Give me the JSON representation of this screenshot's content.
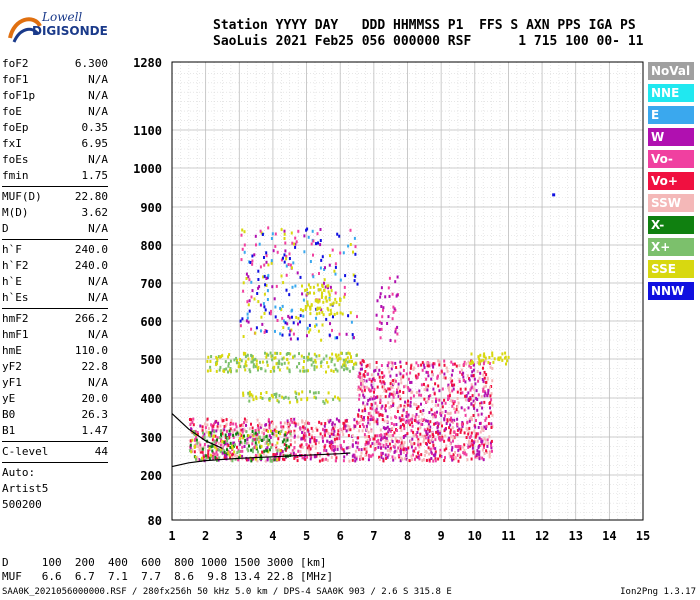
{
  "logo": {
    "line1": "Lowell",
    "line2": "DIGISONDE"
  },
  "header": {
    "line1": "Station YYYY DAY   DDD HHMMSS P1  FFS S AXN PPS IGA PS",
    "line2": "SaoLuis 2021 Feb25 056 000000 RSF      1 715 100 00- 11"
  },
  "params": {
    "group1": [
      {
        "k": "foF2",
        "v": "6.300"
      },
      {
        "k": "foF1",
        "v": "N/A"
      },
      {
        "k": "foF1p",
        "v": "N/A"
      },
      {
        "k": "foE",
        "v": "N/A"
      },
      {
        "k": "foEp",
        "v": "0.35"
      },
      {
        "k": "fxI",
        "v": "6.95"
      },
      {
        "k": "foEs",
        "v": "N/A"
      },
      {
        "k": "fmin",
        "v": "1.75"
      }
    ],
    "group2": [
      {
        "k": "MUF(D)",
        "v": "22.80"
      },
      {
        "k": "M(D)",
        "v": "3.62"
      },
      {
        "k": "D",
        "v": "N/A"
      }
    ],
    "group3": [
      {
        "k": "h`F",
        "v": "240.0"
      },
      {
        "k": "h`F2",
        "v": "240.0"
      },
      {
        "k": "h`E",
        "v": "N/A"
      },
      {
        "k": "h`Es",
        "v": "N/A"
      }
    ],
    "group4": [
      {
        "k": "hmF2",
        "v": "266.2"
      },
      {
        "k": "hmF1",
        "v": "N/A"
      },
      {
        "k": "hmE",
        "v": "110.0"
      },
      {
        "k": "yF2",
        "v": "22.8"
      },
      {
        "k": "yF1",
        "v": "N/A"
      },
      {
        "k": "yE",
        "v": "20.0"
      },
      {
        "k": "B0",
        "v": "26.3"
      },
      {
        "k": "B1",
        "v": "1.47"
      }
    ],
    "clevel": {
      "k": "C-level",
      "v": "44"
    },
    "auto": [
      "Auto:",
      "Artist5",
      "500200"
    ]
  },
  "legend": [
    {
      "label": "NoVal",
      "color": "#a0a0a0"
    },
    {
      "label": "NNE",
      "color": "#20e8f0"
    },
    {
      "label": "E",
      "color": "#3aa8ee"
    },
    {
      "label": "W",
      "color": "#b010b0"
    },
    {
      "label": "Vo-",
      "color": "#f040a0"
    },
    {
      "label": "Vo+",
      "color": "#f01040"
    },
    {
      "label": "SSW",
      "color": "#f4b8b8"
    },
    {
      "label": "X-",
      "color": "#108010"
    },
    {
      "label": "X+",
      "color": "#7cc06c"
    },
    {
      "label": "SSE",
      "color": "#d8d810"
    },
    {
      "label": "NNW",
      "color": "#1010e0"
    }
  ],
  "chart_data": {
    "type": "scatter",
    "x_ticks": [
      "1",
      "2",
      "3",
      "4",
      "5",
      "6",
      "7",
      "8",
      "9",
      "10",
      "11",
      "12",
      "13",
      "14",
      "15"
    ],
    "y_ticks": [
      "80",
      "200",
      "300",
      "400",
      "500",
      "600",
      "700",
      "800",
      "900",
      "1000",
      "1100",
      "1280"
    ],
    "xlim": [
      1,
      15
    ],
    "ylim": [
      80,
      1280
    ],
    "y_scale": "nonlinear",
    "grid": true,
    "trace": [
      {
        "x": 1.0,
        "y": 222
      },
      {
        "x": 1.5,
        "y": 232
      },
      {
        "x": 2.0,
        "y": 238
      },
      {
        "x": 3.0,
        "y": 244
      },
      {
        "x": 4.0,
        "y": 248
      },
      {
        "x": 5.0,
        "y": 252
      },
      {
        "x": 6.0,
        "y": 256
      },
      {
        "x": 6.3,
        "y": 258
      }
    ],
    "trace2": [
      {
        "x": 1.0,
        "y": 360
      },
      {
        "x": 1.5,
        "y": 320
      },
      {
        "x": 2.0,
        "y": 290
      },
      {
        "x": 2.5,
        "y": 270
      }
    ],
    "scatter_regions": [
      {
        "x": [
          1.5,
          10.5
        ],
        "y": [
          240,
          350
        ],
        "colors": [
          "Vo+",
          "Vo-",
          "W",
          "SSW"
        ],
        "density": 0.55
      },
      {
        "x": [
          1.5,
          4.5
        ],
        "y": [
          240,
          320
        ],
        "colors": [
          "X+",
          "SSE",
          "X-"
        ],
        "density": 0.35
      },
      {
        "x": [
          6.5,
          10.5
        ],
        "y": [
          350,
          500
        ],
        "colors": [
          "W",
          "Vo-",
          "Vo+",
          "SSW"
        ],
        "density": 0.4
      },
      {
        "x": [
          2.0,
          6.5
        ],
        "y": [
          470,
          520
        ],
        "colors": [
          "SSE",
          "X+"
        ],
        "density": 0.45
      },
      {
        "x": [
          9.8,
          11.0
        ],
        "y": [
          490,
          520
        ],
        "colors": [
          "SSE"
        ],
        "density": 0.45
      },
      {
        "x": [
          3.0,
          6.0
        ],
        "y": [
          390,
          420
        ],
        "colors": [
          "SSE",
          "X+"
        ],
        "density": 0.3
      },
      {
        "x": [
          3.0,
          6.5
        ],
        "y": [
          550,
          850
        ],
        "colors": [
          "W",
          "NNW",
          "Vo-",
          "SSE",
          "E"
        ],
        "density": 0.12
      },
      {
        "x": [
          4.8,
          6.0
        ],
        "y": [
          620,
          700
        ],
        "colors": [
          "SSE"
        ],
        "density": 0.35
      },
      {
        "x": [
          7.0,
          7.7
        ],
        "y": [
          550,
          720
        ],
        "colors": [
          "W",
          "Vo-"
        ],
        "density": 0.15
      }
    ],
    "isolated_point": {
      "x": 12.3,
      "y": 935
    }
  },
  "footer": {
    "d_row": "D     100  200  400  600  800 1000 1500 3000 [km]",
    "muf_row": "MUF   6.6  6.7  7.1  7.7  8.6  9.8 13.4 22.8 [MHz]",
    "file_line": "SAA0K_2021056000000.RSF / 280fx256h 50 kHz 5.0 km / DPS-4 SAA0K 903 / 2.6 S 315.8 E",
    "version": "Ion2Png 1.3.17"
  }
}
